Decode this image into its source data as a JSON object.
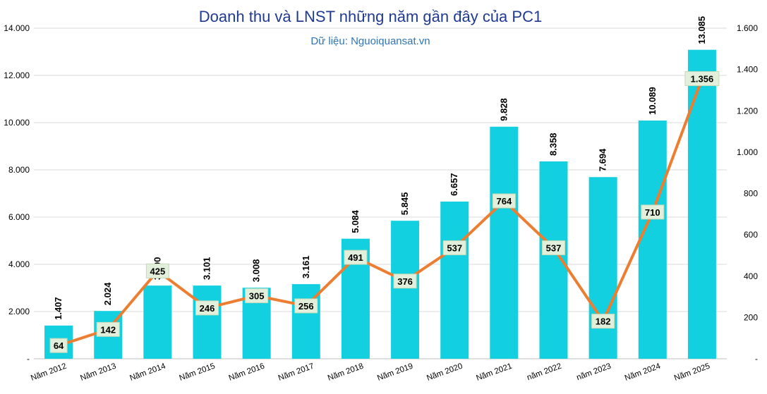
{
  "chart_data": {
    "type": "bar",
    "title": "Doanh thu và LNST những năm gần đây của PC1",
    "subtitle": "Dữ liệu: Nguoiquansat.vn",
    "categories": [
      "Năm 2012",
      "Năm 2013",
      "Năm 2014",
      "Năm 2015",
      "Năm 2016",
      "Năm 2017",
      "Năm 2018",
      "Năm 2019",
      "Năm 2020",
      "Năm 2021",
      "năm 2022",
      "năm 2023",
      "Năm 2024",
      "Năm 2025"
    ],
    "series": [
      {
        "type": "bar",
        "axis": "left",
        "color": "#12d0e0",
        "values": [
          1407,
          2024,
          3100,
          3101,
          3008,
          3161,
          5084,
          5845,
          6657,
          9828,
          8358,
          7694,
          10089,
          13085
        ],
        "labels": [
          "1.407",
          "2.024",
          "3.100",
          "3.101",
          "3.008",
          "3.161",
          "5.084",
          "5.845",
          "6.657",
          "9.828",
          "8.358",
          "7.694",
          "10.089",
          "13.085"
        ]
      },
      {
        "type": "line",
        "axis": "right",
        "color": "#ed7d31",
        "label_bg": "#e2efda",
        "values": [
          64,
          142,
          425,
          246,
          305,
          256,
          491,
          376,
          537,
          764,
          537,
          182,
          710,
          1356
        ],
        "labels": [
          "64",
          "142",
          "425",
          "246",
          "305",
          "256",
          "491",
          "376",
          "537",
          "764",
          "537",
          "182",
          "710",
          "1.356"
        ]
      }
    ],
    "y_left": {
      "lim": [
        0,
        14000
      ],
      "ticks": [
        0,
        2000,
        4000,
        6000,
        8000,
        10000,
        12000,
        14000
      ],
      "tick_labels": [
        "-",
        "2.000",
        "4.000",
        "6.000",
        "8.000",
        "10.000",
        "12.000",
        "14.000"
      ]
    },
    "y_right": {
      "lim": [
        0,
        1600
      ],
      "ticks": [
        0,
        200,
        400,
        600,
        800,
        1000,
        1200,
        1400,
        1600
      ],
      "tick_labels": [
        "-",
        "200",
        "400",
        "600",
        "800",
        "1.000",
        "1.200",
        "1.400",
        "1.600"
      ]
    },
    "grid": true,
    "legend": "none"
  }
}
